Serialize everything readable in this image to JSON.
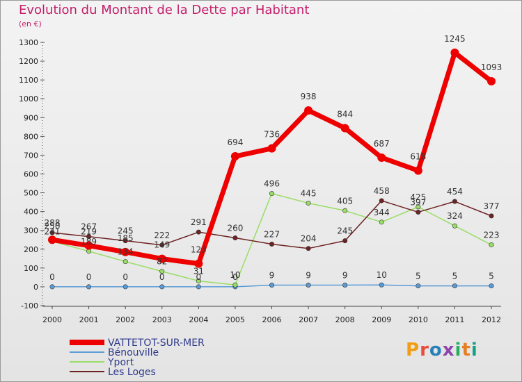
{
  "title": "Evolution du Montant de la Dette par Habitant",
  "subtitle": "(en €)",
  "brand": {
    "text": "Proxiti",
    "colors": [
      "#f39c12",
      "#e84c3d",
      "#2980b9",
      "#8e44ad",
      "#27ae60",
      "#e67e22",
      "#16a085"
    ]
  },
  "chart_data": {
    "type": "line",
    "x": [
      2000,
      2001,
      2002,
      2003,
      2004,
      2005,
      2006,
      2007,
      2008,
      2009,
      2010,
      2011,
      2012
    ],
    "ylim": [
      -100,
      1300
    ],
    "yticks": [
      -100,
      0,
      100,
      200,
      300,
      400,
      500,
      600,
      700,
      800,
      900,
      1000,
      1100,
      1200,
      1300
    ],
    "grid": false,
    "legend_position": "bottom-left",
    "series": [
      {
        "name": "VATTETOT-SUR-MER",
        "color": "#ee0000",
        "width": 7,
        "marker": 6,
        "values": [
          250,
          219,
          185,
          149,
          123,
          694,
          736,
          938,
          844,
          687,
          618,
          1245,
          1093
        ],
        "labels": [
          "250",
          "219",
          "185",
          "149",
          "123",
          "694",
          "736",
          "938",
          "844",
          "687",
          "618",
          "1245",
          "1093"
        ]
      },
      {
        "name": "Bénouville",
        "color": "#5b9bd5",
        "width": 1.5,
        "marker": 3.2,
        "values": [
          0,
          0,
          0,
          0,
          0,
          0,
          9,
          9,
          9,
          10,
          5,
          5,
          5
        ],
        "labels": [
          "0",
          "0",
          "0",
          "0",
          "0",
          "0",
          "9",
          "9",
          "9",
          "10",
          "5",
          "5",
          "5"
        ]
      },
      {
        "name": "Yport",
        "color": "#99dd66",
        "width": 1.5,
        "marker": 3.2,
        "values": [
          241,
          189,
          134,
          82,
          31,
          10,
          496,
          445,
          405,
          344,
          425,
          324,
          223
        ],
        "labels": [
          "241",
          "189",
          "134",
          "82",
          "31",
          "10",
          "496",
          "445",
          "405",
          "344",
          "425",
          "324",
          "223"
        ]
      },
      {
        "name": "Les Loges",
        "color": "#6e2323",
        "width": 1.5,
        "marker": 3.2,
        "values": [
          288,
          267,
          245,
          222,
          291,
          260,
          227,
          204,
          245,
          458,
          397,
          454,
          377
        ],
        "labels": [
          "288",
          "267",
          "245",
          "222",
          "291",
          "260",
          "227",
          "204",
          "245",
          "458",
          "397",
          "454",
          "377"
        ]
      }
    ]
  }
}
